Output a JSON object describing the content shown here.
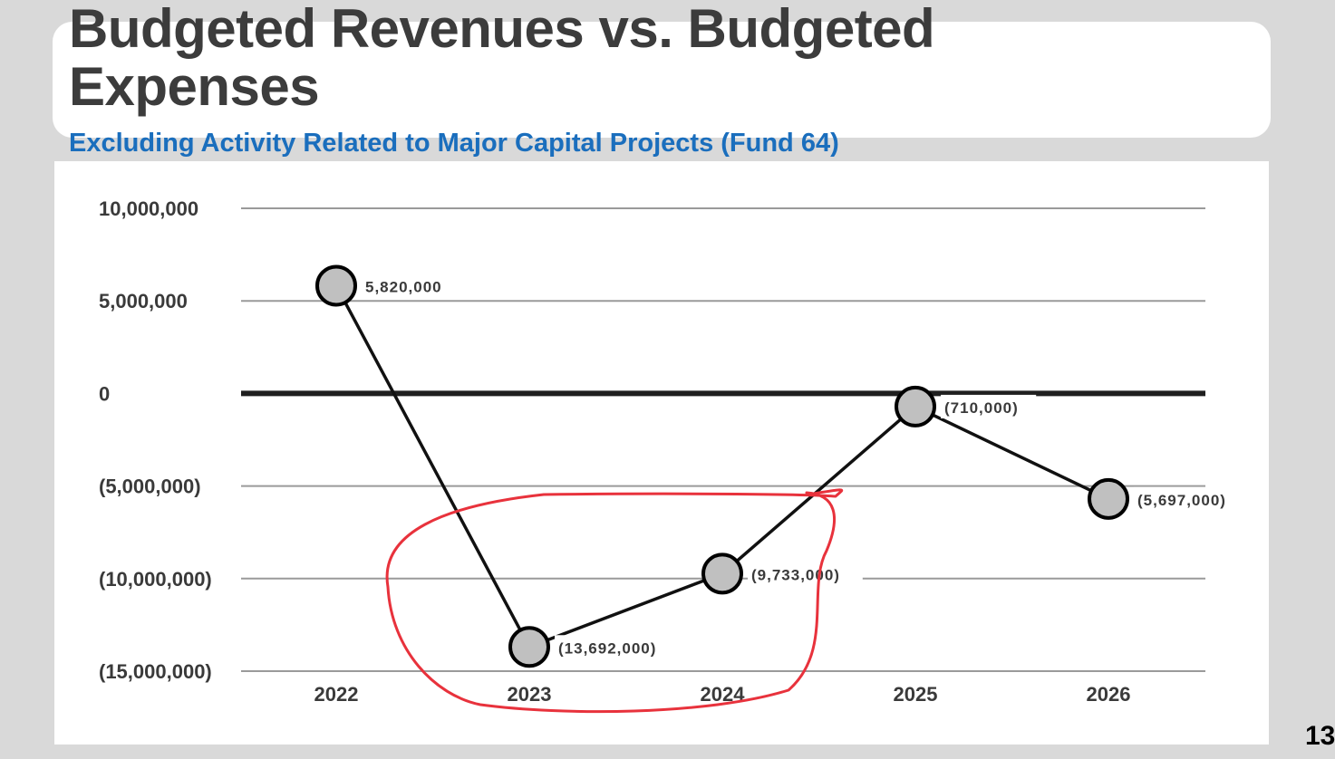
{
  "slide": {
    "title_lines": [
      "Budgeted Revenues vs. Budgeted",
      "Expenses"
    ],
    "subtitle": "Excluding Activity Related to Major Capital Projects (Fund 64)",
    "page_number": "13"
  },
  "chart_data": {
    "type": "line",
    "title": "",
    "xlabel": "",
    "ylabel": "",
    "categories": [
      "2022",
      "2023",
      "2024",
      "2025",
      "2026"
    ],
    "series": [
      {
        "values": [
          5820000,
          -13692000,
          -9733000,
          -710000,
          -5697000
        ],
        "data_labels": [
          "5,820,000",
          "(13,692,000)",
          "(9,733,000)",
          "(710,000)",
          "(5,697,000)"
        ]
      }
    ],
    "ylim": [
      -15000000,
      10000000
    ],
    "y_ticks": [
      10000000,
      5000000,
      0,
      -5000000,
      -10000000,
      -15000000
    ],
    "y_tick_labels": [
      "10,000,000",
      "5,000,000",
      "0",
      "(5,000,000)",
      "(10,000,000)",
      "(15,000,000)"
    ],
    "grid": true,
    "legend": "none",
    "colors": {
      "line": "#111111",
      "marker_fill": "#c0c0c0",
      "gridline": "#9a9a9a",
      "zero_line": "#1f1f1f",
      "highlight_annotation": "#e8323c"
    },
    "annotations": [
      {
        "kind": "hand-drawn circle",
        "encloses": [
          "2023",
          "2024"
        ]
      }
    ]
  }
}
